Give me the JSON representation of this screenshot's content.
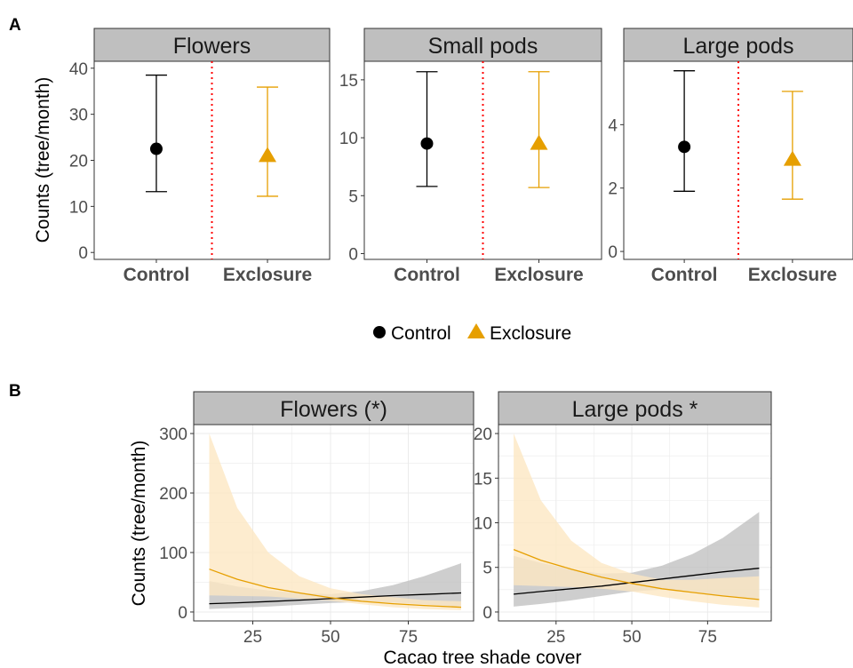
{
  "figure": {
    "panel_labels": [
      "A",
      "B"
    ]
  },
  "colors": {
    "control": "#000000",
    "exclosure": "#e69f00",
    "exclosure_ribbon": "#fde7c3",
    "control_ribbon": "#bdbdbd",
    "strip_fill": "#bfbfbf",
    "grid": "#ebebeb",
    "divider": "#ff0000"
  },
  "legend": {
    "items": [
      {
        "label": "Control",
        "shape": "circle"
      },
      {
        "label": "Exclosure",
        "shape": "triangle"
      }
    ]
  },
  "chart_data": [
    {
      "panel": "A",
      "type": "scatter",
      "ylabel": "Counts (tree/month)",
      "xlabel": "",
      "categories": [
        "Control",
        "Exclosure"
      ],
      "facets": [
        {
          "title": "Flowers",
          "ylim": [
            -1.5,
            41.5
          ],
          "yticks": [
            0,
            10,
            20,
            30,
            40
          ],
          "points": [
            {
              "group": "Control",
              "value": 22.5,
              "lower": 13.2,
              "upper": 38.5
            },
            {
              "group": "Exclosure",
              "value": 21.0,
              "lower": 12.2,
              "upper": 35.9
            }
          ]
        },
        {
          "title": "Small pods",
          "ylim": [
            -0.5,
            16.6
          ],
          "yticks": [
            0,
            5,
            10,
            15
          ],
          "points": [
            {
              "group": "Control",
              "value": 9.5,
              "lower": 5.8,
              "upper": 15.7
            },
            {
              "group": "Exclosure",
              "value": 9.5,
              "lower": 5.7,
              "upper": 15.7
            }
          ]
        },
        {
          "title": "Large pods",
          "ylim": [
            -0.25,
            6.0
          ],
          "yticks": [
            0,
            2,
            4
          ],
          "points": [
            {
              "group": "Control",
              "value": 3.3,
              "lower": 1.9,
              "upper": 5.7
            },
            {
              "group": "Exclosure",
              "value": 2.9,
              "lower": 1.65,
              "upper": 5.05
            }
          ]
        }
      ]
    },
    {
      "panel": "B",
      "type": "line",
      "ylabel": "Counts (tree/month)",
      "xlabel": "Cacao tree shade cover",
      "xlim": [
        6,
        96
      ],
      "xticks": [
        25,
        50,
        75
      ],
      "facets": [
        {
          "title": "Flowers (*)",
          "ylim": [
            -15,
            315
          ],
          "yticks": [
            0,
            100,
            200,
            300
          ],
          "series": [
            {
              "name": "Control",
              "x": [
                11,
                20,
                30,
                40,
                50,
                60,
                70,
                80,
                92
              ],
              "y": [
                14,
                15.5,
                17.5,
                20,
                22.5,
                25,
                27.5,
                29.5,
                32
              ],
              "lower": [
                5,
                7,
                9,
                12,
                15,
                17,
                16,
                13,
                8
              ],
              "upper": [
                52,
                43,
                36,
                32,
                30,
                35,
                45,
                60,
                82
              ]
            },
            {
              "name": "Exclosure",
              "x": [
                11,
                20,
                30,
                40,
                50,
                60,
                70,
                80,
                92
              ],
              "y": [
                72,
                55,
                41,
                32,
                24,
                18,
                14,
                11,
                8
              ],
              "lower": [
                28,
                27,
                26,
                23,
                19,
                13,
                8,
                5,
                3
              ],
              "upper": [
                300,
                175,
                100,
                60,
                40,
                30,
                25,
                20,
                18
              ]
            }
          ]
        },
        {
          "title": "Large pods *",
          "ylim": [
            -1,
            21
          ],
          "yticks": [
            0,
            5,
            10,
            15,
            20
          ],
          "series": [
            {
              "name": "Control",
              "x": [
                11,
                20,
                30,
                40,
                50,
                60,
                70,
                80,
                92
              ],
              "y": [
                2,
                2.3,
                2.6,
                2.9,
                3.3,
                3.7,
                4.1,
                4.5,
                4.9
              ],
              "lower": [
                0.6,
                0.9,
                1.3,
                1.8,
                2.3,
                2.5,
                2.3,
                1.8,
                1.3
              ],
              "upper": [
                6.3,
                5.5,
                4.8,
                4.3,
                4.4,
                5.2,
                6.5,
                8.3,
                11.2
              ]
            },
            {
              "name": "Exclosure",
              "x": [
                11,
                20,
                30,
                40,
                50,
                60,
                70,
                80,
                92
              ],
              "y": [
                7.0,
                5.8,
                4.8,
                3.9,
                3.2,
                2.6,
                2.2,
                1.8,
                1.4
              ],
              "lower": [
                3.0,
                2.9,
                2.8,
                2.6,
                2.3,
                1.7,
                1.2,
                0.8,
                0.5
              ],
              "upper": [
                20,
                12.5,
                8,
                5.5,
                4.3,
                3.6,
                3.6,
                3.8,
                4.0
              ]
            }
          ]
        }
      ]
    }
  ]
}
